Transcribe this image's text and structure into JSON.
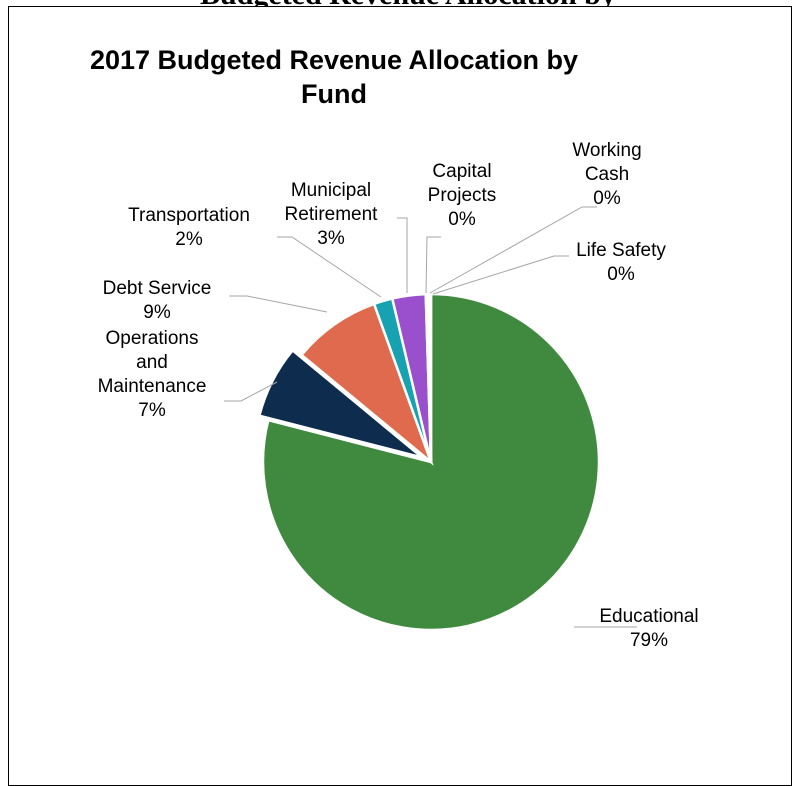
{
  "page": {
    "top_strip_text": "Budgeted Revenue Allocation by"
  },
  "chart_data": {
    "type": "pie",
    "title": "2017 Budgeted Revenue Allocation by Fund",
    "title_lines": [
      "2017 Budgeted Revenue Allocation by",
      "Fund"
    ],
    "legend": "none",
    "slices": [
      {
        "name": "Educational",
        "label_lines": [
          "Educational"
        ],
        "percent_label": "79%",
        "value": 79.0,
        "color": "#3f8a3e"
      },
      {
        "name": "Operations and Maintenance",
        "label_lines": [
          "Operations",
          "and",
          "Maintenance"
        ],
        "percent_label": "7%",
        "value": 7.0,
        "color": "#0d2c4e"
      },
      {
        "name": "Debt Service",
        "label_lines": [
          "Debt Service"
        ],
        "percent_label": "9%",
        "value": 8.5,
        "color": "#e06a4e"
      },
      {
        "name": "Transportation",
        "label_lines": [
          "Transportation"
        ],
        "percent_label": "2%",
        "value": 1.8,
        "color": "#17a2b2"
      },
      {
        "name": "Municipal Retirement",
        "label_lines": [
          "Municipal",
          "Retirement"
        ],
        "percent_label": "3%",
        "value": 3.2,
        "color": "#9a4fcc"
      },
      {
        "name": "Capital Projects",
        "label_lines": [
          "Capital",
          "Projects"
        ],
        "percent_label": "0%",
        "value": 0.15,
        "color": "#9fd3dd"
      },
      {
        "name": "Working Cash",
        "label_lines": [
          "Working",
          "Cash"
        ],
        "percent_label": "0%",
        "value": 0.15,
        "color": "#f2c59b"
      },
      {
        "name": "Life Safety",
        "label_lines": [
          "Life Safety"
        ],
        "percent_label": "0%",
        "value": 0.2,
        "color": "#c0c0c0"
      }
    ]
  }
}
